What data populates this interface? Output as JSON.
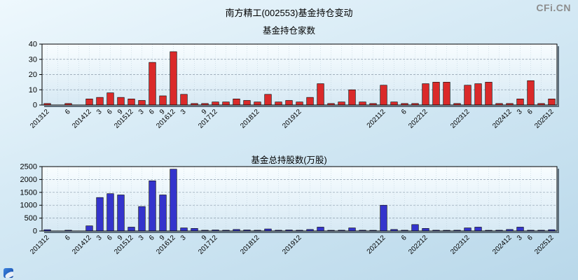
{
  "page": {
    "title": "南方精工(002553)基金持仓变动",
    "watermark": "CFi.CN"
  },
  "chart_data": [
    {
      "type": "bar",
      "title": "基金持仓家数",
      "bar_color": "#da2a2a",
      "bar_border": "#000000",
      "ylim": [
        0,
        40
      ],
      "yticks": [
        0,
        10,
        20,
        30,
        40
      ],
      "grid": "horizontal-dashed",
      "legend": "none",
      "categories": [
        "201312",
        "201403",
        "201406",
        "201409",
        "201412",
        "201503",
        "201506",
        "201509",
        "201512",
        "201603",
        "201606",
        "201609",
        "201612",
        "201703",
        "201706",
        "201709",
        "201712",
        "201803",
        "201806",
        "201809",
        "201812",
        "201903",
        "201906",
        "201909",
        "201912",
        "202003",
        "202006",
        "202009",
        "202012",
        "202103",
        "202106",
        "202109",
        "202112",
        "202203",
        "202206",
        "202209",
        "202212",
        "202303",
        "202306",
        "202309",
        "202312",
        "202403",
        "202406",
        "202409",
        "202412",
        "202503",
        "202506",
        "202509",
        "202512"
      ],
      "tick_labels": [
        "201312",
        "",
        "6",
        "",
        "201412",
        "3",
        "6",
        "9",
        "201512",
        "3",
        "6",
        "9",
        "201612",
        "3",
        "",
        "9",
        "201712",
        "",
        "",
        "",
        "201812",
        "",
        "",
        "",
        "201912",
        "",
        "",
        "",
        "",
        "",
        "",
        "",
        "202112",
        "",
        "6",
        "",
        "202212",
        "",
        "",
        "",
        "202312",
        "",
        "",
        "",
        "202412",
        "3",
        "6",
        "",
        "202512"
      ],
      "values": [
        1,
        0,
        1,
        0,
        4,
        5,
        8,
        5,
        4,
        3,
        28,
        6,
        35,
        7,
        1,
        1,
        2,
        2,
        4,
        3,
        2,
        7,
        2,
        3,
        2,
        5,
        14,
        1,
        2,
        10,
        2,
        1,
        13,
        2,
        1,
        1,
        14,
        15,
        15,
        1,
        13,
        14,
        15,
        1,
        1,
        4,
        16,
        1,
        4
      ]
    },
    {
      "type": "bar",
      "title": "基金总持股数(万股)",
      "bar_color": "#3434cc",
      "bar_border": "#000000",
      "ylim": [
        0,
        2500
      ],
      "yticks": [
        0,
        500,
        1000,
        1500,
        2000,
        2500
      ],
      "grid": "horizontal-dashed",
      "legend": "none",
      "categories": [
        "201312",
        "201403",
        "201406",
        "201409",
        "201412",
        "201503",
        "201506",
        "201509",
        "201512",
        "201603",
        "201606",
        "201609",
        "201612",
        "201703",
        "201706",
        "201709",
        "201712",
        "201803",
        "201806",
        "201809",
        "201812",
        "201903",
        "201906",
        "201909",
        "201912",
        "202003",
        "202006",
        "202009",
        "202012",
        "202103",
        "202106",
        "202109",
        "202112",
        "202203",
        "202206",
        "202209",
        "202212",
        "202303",
        "202306",
        "202309",
        "202312",
        "202403",
        "202406",
        "202409",
        "202412",
        "202503",
        "202506",
        "202509",
        "202512"
      ],
      "tick_labels": [
        "201312",
        "",
        "6",
        "",
        "201412",
        "3",
        "6",
        "9",
        "201512",
        "3",
        "6",
        "9",
        "201612",
        "3",
        "",
        "9",
        "201712",
        "",
        "",
        "",
        "201812",
        "",
        "",
        "",
        "201912",
        "",
        "",
        "",
        "",
        "",
        "",
        "",
        "202112",
        "",
        "6",
        "",
        "202212",
        "",
        "",
        "",
        "202312",
        "",
        "",
        "",
        "202412",
        "3",
        "6",
        "",
        "202512"
      ],
      "values": [
        50,
        0,
        30,
        0,
        200,
        1300,
        1450,
        1400,
        150,
        950,
        1950,
        1400,
        2400,
        120,
        100,
        30,
        40,
        30,
        60,
        40,
        30,
        80,
        30,
        40,
        30,
        60,
        150,
        20,
        30,
        120,
        30,
        20,
        1000,
        60,
        30,
        250,
        100,
        30,
        20,
        30,
        120,
        150,
        20,
        30,
        60,
        150,
        30,
        30,
        50
      ]
    }
  ]
}
